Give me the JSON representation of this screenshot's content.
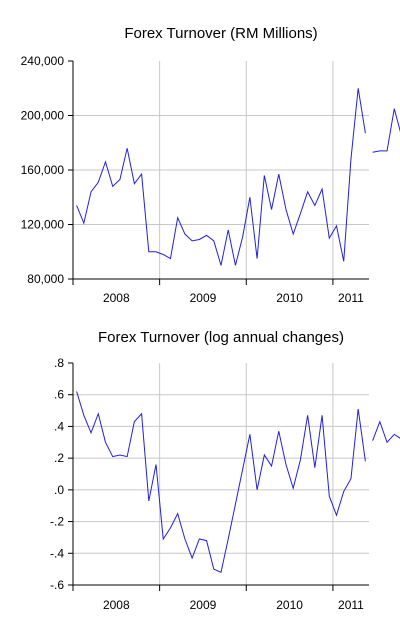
{
  "colors": {
    "line": "#2020e0",
    "grid": "#c8c8c8",
    "axis": "#000000"
  },
  "chart_data": [
    {
      "type": "line",
      "title": "Forex Turnover (RM Millions)",
      "xlabel": "",
      "ylabel": "",
      "ylim": [
        80000,
        240000
      ],
      "yticks": [
        80000,
        120000,
        160000,
        200000,
        240000
      ],
      "ytick_labels": [
        "80,000",
        "120,000",
        "160,000",
        "200,000",
        "240,000"
      ],
      "x_start": "2008-01",
      "x_end": "2011-05",
      "x_tick_labels": [
        "2008",
        "2009",
        "2010",
        "2011"
      ],
      "grid": true,
      "legend": "none",
      "series": [
        {
          "x": [
            "2008-01",
            "2008-02",
            "2008-03",
            "2008-04",
            "2008-05",
            "2008-06",
            "2008-07",
            "2008-08",
            "2008-09",
            "2008-10",
            "2008-11",
            "2008-12",
            "2009-01",
            "2009-02",
            "2009-03",
            "2009-04",
            "2009-05",
            "2009-06",
            "2009-07",
            "2009-08",
            "2009-09",
            "2009-10",
            "2009-11",
            "2009-12",
            "2010-01",
            "2010-02",
            "2010-03",
            "2010-04",
            "2010-05",
            "2010-06",
            "2010-07",
            "2010-08",
            "2010-09",
            "2010-10",
            "2010-11",
            "2010-12",
            "2011-01",
            "2011-02",
            "2011-03",
            "2011-04",
            "2011-05"
          ],
          "values": [
            134000,
            121000,
            144000,
            151000,
            166000,
            148000,
            153000,
            176000,
            150000,
            157000,
            100000,
            100000,
            98000,
            95000,
            125000,
            113000,
            108000,
            109000,
            112000,
            108000,
            90000,
            116000,
            90000,
            111000,
            140000,
            95000,
            156000,
            131000,
            157000,
            131000,
            113000,
            128000,
            144000,
            134000,
            146000,
            110000,
            119000,
            93000,
            168000,
            220000,
            187000
          ]
        },
        {
          "x": [
            "2011-06",
            "2011-07",
            "2011-08",
            "2011-09",
            "2011-10"
          ],
          "values": [
            173000,
            174000,
            174000,
            205000,
            185000
          ]
        }
      ]
    },
    {
      "type": "line",
      "title": "Forex Turnover (log annual changes)",
      "xlabel": "",
      "ylabel": "",
      "ylim": [
        -0.6,
        0.8
      ],
      "yticks": [
        -0.6,
        -0.4,
        -0.2,
        0.0,
        0.2,
        0.4,
        0.6,
        0.8
      ],
      "ytick_labels": [
        "-.6",
        "-.4",
        "-.2",
        ".0",
        ".2",
        ".4",
        ".6",
        ".8"
      ],
      "x_start": "2008-01",
      "x_end": "2011-05",
      "x_tick_labels": [
        "2008",
        "2009",
        "2010",
        "2011"
      ],
      "grid": true,
      "legend": "none",
      "series": [
        {
          "x": [
            "2008-01",
            "2008-02",
            "2008-03",
            "2008-04",
            "2008-05",
            "2008-06",
            "2008-07",
            "2008-08",
            "2008-09",
            "2008-10",
            "2008-11",
            "2008-12",
            "2009-01",
            "2009-02",
            "2009-03",
            "2009-04",
            "2009-05",
            "2009-06",
            "2009-07",
            "2009-08",
            "2009-09",
            "2009-10",
            "2009-11",
            "2009-12",
            "2010-01",
            "2010-02",
            "2010-03",
            "2010-04",
            "2010-05",
            "2010-06",
            "2010-07",
            "2010-08",
            "2010-09",
            "2010-10",
            "2010-11",
            "2010-12",
            "2011-01",
            "2011-02",
            "2011-03",
            "2011-04",
            "2011-05"
          ],
          "values": [
            0.62,
            0.47,
            0.36,
            0.48,
            0.3,
            0.21,
            0.22,
            0.21,
            0.43,
            0.48,
            -0.07,
            0.16,
            -0.31,
            -0.24,
            -0.15,
            -0.31,
            -0.43,
            -0.31,
            -0.32,
            -0.5,
            -0.52,
            -0.31,
            -0.09,
            0.13,
            0.35,
            0.0,
            0.22,
            0.15,
            0.37,
            0.16,
            0.01,
            0.19,
            0.47,
            0.14,
            0.47,
            -0.04,
            -0.16,
            -0.01,
            0.07,
            0.51,
            0.18
          ]
        },
        {
          "x": [
            "2011-06",
            "2011-07",
            "2011-08",
            "2011-09",
            "2011-10"
          ],
          "values": [
            0.31,
            0.43,
            0.3,
            0.35,
            0.32
          ]
        }
      ]
    }
  ]
}
